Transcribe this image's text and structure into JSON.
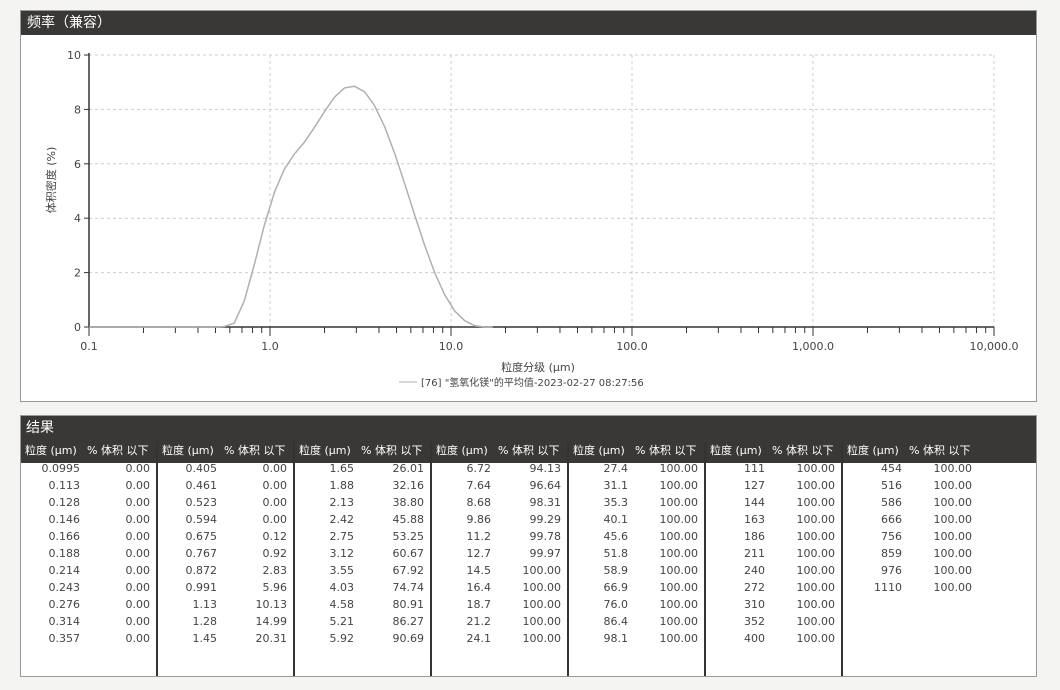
{
  "chart_section": {
    "title": "频率（兼容）"
  },
  "chart_data": {
    "type": "line",
    "xscale": "log",
    "xlim": [
      0.1,
      10000
    ],
    "ylim": [
      0,
      10
    ],
    "xlabel": "粒度分级 (μm)",
    "ylabel": "体积密度 (%)",
    "xticks": [
      "0.1",
      "1.0",
      "10.0",
      "100.0",
      "1,000.0",
      "10,000.0"
    ],
    "yticks": [
      "0",
      "2",
      "4",
      "6",
      "8",
      "10"
    ],
    "grid": true,
    "legend_position": "bottom",
    "series": [
      {
        "name": "[76] \"氢氧化镁\"的平均值-2023-02-27 08:27:56",
        "color": "#b0b0b0",
        "x": [
          0.1,
          0.5,
          0.56,
          0.634,
          0.72,
          0.818,
          0.93,
          1.06,
          1.2,
          1.36,
          1.55,
          1.76,
          2.0,
          2.27,
          2.58,
          2.93,
          3.33,
          3.78,
          4.3,
          4.88,
          5.55,
          6.31,
          7.17,
          8.14,
          9.25,
          10.5,
          11.9,
          13.6,
          15.5,
          17
        ],
        "y": [
          0,
          0,
          0.02,
          0.14,
          0.95,
          2.28,
          3.73,
          4.97,
          5.8,
          6.35,
          6.8,
          7.34,
          7.92,
          8.45,
          8.79,
          8.85,
          8.65,
          8.14,
          7.36,
          6.39,
          5.27,
          4.1,
          2.99,
          1.99,
          1.17,
          0.58,
          0.23,
          0.04,
          0,
          0
        ]
      }
    ]
  },
  "results": {
    "title": "结果",
    "col_size": "粒度 (μm)",
    "col_pct": "% 体积 以下",
    "groups": [
      [
        [
          "0.0995",
          "0.00"
        ],
        [
          "0.113",
          "0.00"
        ],
        [
          "0.128",
          "0.00"
        ],
        [
          "0.146",
          "0.00"
        ],
        [
          "0.166",
          "0.00"
        ],
        [
          "0.188",
          "0.00"
        ],
        [
          "0.214",
          "0.00"
        ],
        [
          "0.243",
          "0.00"
        ],
        [
          "0.276",
          "0.00"
        ],
        [
          "0.314",
          "0.00"
        ],
        [
          "0.357",
          "0.00"
        ]
      ],
      [
        [
          "0.405",
          "0.00"
        ],
        [
          "0.461",
          "0.00"
        ],
        [
          "0.523",
          "0.00"
        ],
        [
          "0.594",
          "0.00"
        ],
        [
          "0.675",
          "0.12"
        ],
        [
          "0.767",
          "0.92"
        ],
        [
          "0.872",
          "2.83"
        ],
        [
          "0.991",
          "5.96"
        ],
        [
          "1.13",
          "10.13"
        ],
        [
          "1.28",
          "14.99"
        ],
        [
          "1.45",
          "20.31"
        ]
      ],
      [
        [
          "1.65",
          "26.01"
        ],
        [
          "1.88",
          "32.16"
        ],
        [
          "2.13",
          "38.80"
        ],
        [
          "2.42",
          "45.88"
        ],
        [
          "2.75",
          "53.25"
        ],
        [
          "3.12",
          "60.67"
        ],
        [
          "3.55",
          "67.92"
        ],
        [
          "4.03",
          "74.74"
        ],
        [
          "4.58",
          "80.91"
        ],
        [
          "5.21",
          "86.27"
        ],
        [
          "5.92",
          "90.69"
        ]
      ],
      [
        [
          "6.72",
          "94.13"
        ],
        [
          "7.64",
          "96.64"
        ],
        [
          "8.68",
          "98.31"
        ],
        [
          "9.86",
          "99.29"
        ],
        [
          "11.2",
          "99.78"
        ],
        [
          "12.7",
          "99.97"
        ],
        [
          "14.5",
          "100.00"
        ],
        [
          "16.4",
          "100.00"
        ],
        [
          "18.7",
          "100.00"
        ],
        [
          "21.2",
          "100.00"
        ],
        [
          "24.1",
          "100.00"
        ]
      ],
      [
        [
          "27.4",
          "100.00"
        ],
        [
          "31.1",
          "100.00"
        ],
        [
          "35.3",
          "100.00"
        ],
        [
          "40.1",
          "100.00"
        ],
        [
          "45.6",
          "100.00"
        ],
        [
          "51.8",
          "100.00"
        ],
        [
          "58.9",
          "100.00"
        ],
        [
          "66.9",
          "100.00"
        ],
        [
          "76.0",
          "100.00"
        ],
        [
          "86.4",
          "100.00"
        ],
        [
          "98.1",
          "100.00"
        ]
      ],
      [
        [
          "111",
          "100.00"
        ],
        [
          "127",
          "100.00"
        ],
        [
          "144",
          "100.00"
        ],
        [
          "163",
          "100.00"
        ],
        [
          "186",
          "100.00"
        ],
        [
          "211",
          "100.00"
        ],
        [
          "240",
          "100.00"
        ],
        [
          "272",
          "100.00"
        ],
        [
          "310",
          "100.00"
        ],
        [
          "352",
          "100.00"
        ],
        [
          "400",
          "100.00"
        ]
      ],
      [
        [
          "454",
          "100.00"
        ],
        [
          "516",
          "100.00"
        ],
        [
          "586",
          "100.00"
        ],
        [
          "666",
          "100.00"
        ],
        [
          "756",
          "100.00"
        ],
        [
          "859",
          "100.00"
        ],
        [
          "976",
          "100.00"
        ],
        [
          "1110",
          "100.00"
        ]
      ]
    ]
  }
}
